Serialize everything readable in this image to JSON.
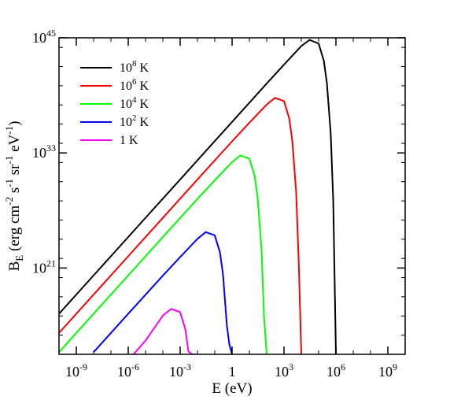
{
  "chart_data": {
    "type": "line",
    "title": "",
    "xlabel": "E (eV)",
    "ylabel_main": "B",
    "ylabel_sub": "E",
    "ylabel_rest": " (erg cm",
    "ylabel_parts": [
      {
        "text": "B"
      },
      {
        "text": "E",
        "sub": true
      },
      {
        "text": " (erg cm"
      },
      {
        "text": "-2",
        "sup": true
      },
      {
        "text": " s"
      },
      {
        "text": "-1",
        "sup": true
      },
      {
        "text": " sr"
      },
      {
        "text": "-1",
        "sup": true
      },
      {
        "text": " eV"
      },
      {
        "text": "-1",
        "sup": true
      },
      {
        "text": ")"
      }
    ],
    "x_scale": "log",
    "y_scale": "log",
    "xlim": [
      1e-10,
      10000000000.0
    ],
    "ylim": [
      1000000000000.0,
      1e+45
    ],
    "x_ticks": [
      {
        "base": "10",
        "exp": "-9",
        "value": 1e-09
      },
      {
        "base": "10",
        "exp": "-6",
        "value": 1e-06
      },
      {
        "base": "10",
        "exp": "-3",
        "value": 0.001
      },
      {
        "base": "1",
        "exp": "",
        "value": 1
      },
      {
        "base": "10",
        "exp": "3",
        "value": 1000.0
      },
      {
        "base": "10",
        "exp": "6",
        "value": 1000000.0
      },
      {
        "base": "10",
        "exp": "9",
        "value": 1000000000.0
      }
    ],
    "y_ticks": [
      {
        "base": "10",
        "exp": "21",
        "value": 1e+21
      },
      {
        "base": "10",
        "exp": "33",
        "value": 1e+33
      },
      {
        "base": "10",
        "exp": "45",
        "value": 1e+45
      }
    ],
    "grid": false,
    "legend_position": "top-left",
    "series": [
      {
        "name": "10",
        "name_exp": "8",
        "name_unit": " K",
        "temperature_K": 100000000.0,
        "color": "#000000",
        "x": [
          1e-10,
          1e-08,
          1e-06,
          0.0001,
          0.01,
          1,
          100.0,
          1000.0,
          10000.0,
          30000.0,
          100000.0,
          200000.0,
          300000.0,
          500000.0,
          700000.0,
          1000000.0
        ],
        "y": [
          1.7e+16,
          1.7e+20,
          1.7e+24,
          1.7e+28,
          1.7e+32,
          1.7e+36,
          1.7e+40,
          1.6e+42,
          1.4e+44,
          6e+44,
          2.5e+44,
          4e+42,
          2e+40,
          1e+35,
          1e+28,
          1000000000000.0
        ]
      },
      {
        "name": "10",
        "name_exp": "6",
        "name_unit": " K",
        "temperature_K": 1000000.0,
        "color": "#ff0000",
        "x": [
          1e-10,
          1e-08,
          1e-06,
          0.0001,
          0.01,
          1,
          10,
          100.0,
          300.0,
          1000.0,
          2000.0,
          3000.0,
          5000.0,
          7000.0,
          10000.0
        ],
        "y": [
          170000000000000.0,
          1.7e+18,
          1.7e+22,
          1.7e+26,
          1.7e+30,
          1.6e+34,
          1.4e+36,
          1.1e+38,
          5.5e+38,
          2.5e+38,
          4e+36,
          2e+34,
          1e+29,
          1e+22,
          1000000000000.0
        ]
      },
      {
        "name": "10",
        "name_exp": "4",
        "name_unit": " K",
        "temperature_K": 10000.0,
        "color": "#00ff00",
        "x": [
          1e-10,
          1e-08,
          1e-06,
          0.0001,
          0.01,
          0.1,
          1,
          3,
          10,
          20,
          30,
          50,
          70,
          100
        ],
        "y": [
          1700000000000.0,
          1.7e+16,
          1.7e+20,
          1.7e+24,
          1.6e+28,
          1.4e+30,
          1.1e+32,
          5.5e+32,
          2.5e+32,
          4e+30,
          2e+28,
          1e+23,
          1e+16,
          1000000000000.0
        ]
      },
      {
        "name": "10",
        "name_exp": "2",
        "name_unit": " K",
        "temperature_K": 100.0,
        "color": "#0000ff",
        "x": [
          1e-08,
          1e-06,
          0.0001,
          0.001,
          0.01,
          0.03,
          0.1,
          0.2,
          0.3,
          0.5,
          0.7,
          1
        ],
        "y": [
          1700000000000.0,
          1.7e+16,
          1.6e+20,
          1.4e+22,
          1.1e+24,
          5.5e+24,
          2.5e+24,
          4e+22,
          2e+20,
          1000000000000000.0,
          10000000000000.0,
          1000000000000.0
        ]
      },
      {
        "name": "1",
        "name_exp": "",
        "name_unit": "  K",
        "temperature_K": 1,
        "color": "#ff00ff",
        "x": [
          2e-06,
          1e-05,
          0.0001,
          0.0003,
          0.001,
          0.002,
          0.003,
          0.005,
          0.007
        ],
        "y": [
          1000000000000.0,
          27000000000000.0,
          1.1e+16,
          5.5e+16,
          2.5e+16,
          400000000000000.0,
          2000000000000.0,
          1000000000000.0,
          1000000000000.0
        ]
      }
    ]
  }
}
